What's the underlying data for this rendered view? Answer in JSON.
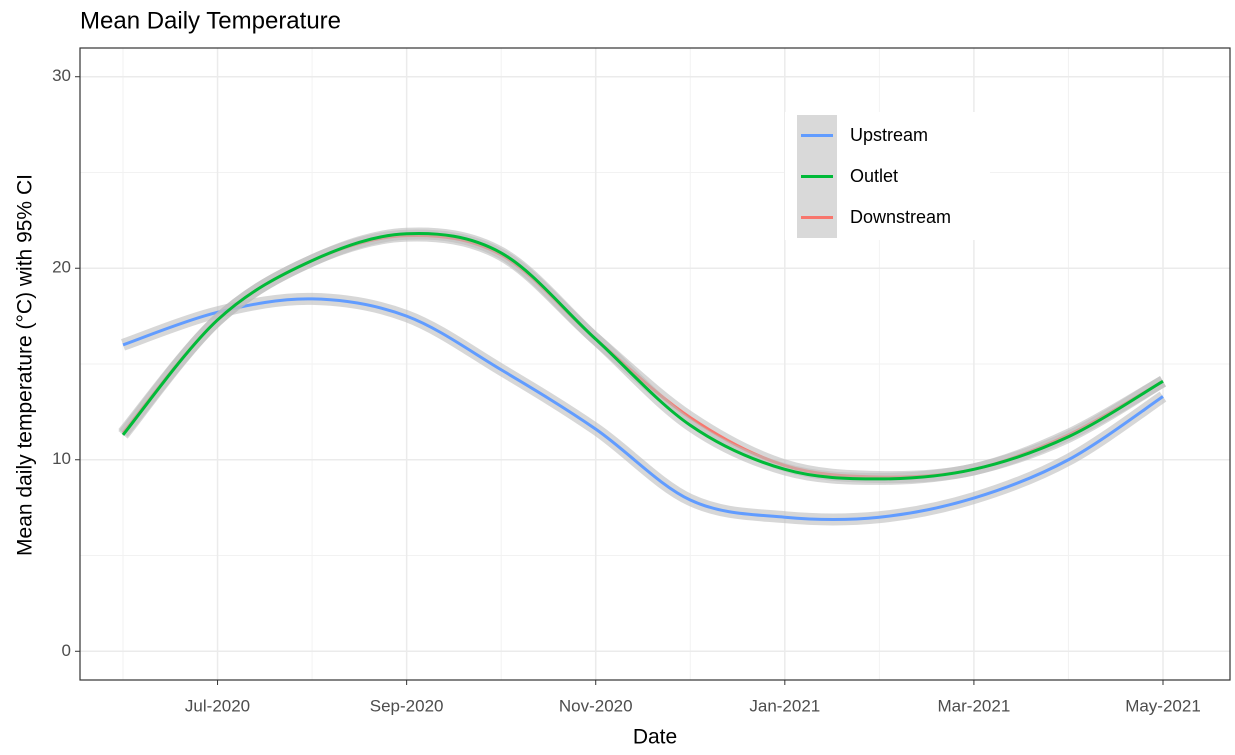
{
  "chart_data": {
    "type": "line",
    "title": "Mean Daily Temperature",
    "x_label": "Date",
    "y_label": "Mean daily temperature (°C) with 95% CI",
    "x": [
      "Jun-2020",
      "Jul-2020",
      "Aug-2020",
      "Sep-2020",
      "Oct-2020",
      "Nov-2020",
      "Dec-2020",
      "Jan-2021",
      "Feb-2021",
      "Mar-2021",
      "Apr-2021",
      "May-2021"
    ],
    "xticks": [
      "Jul-2020",
      "Sep-2020",
      "Nov-2020",
      "Jan-2021",
      "Mar-2021",
      "May-2021"
    ],
    "ylim": [
      -1.5,
      31.5
    ],
    "yticks": [
      0,
      10,
      20,
      30
    ],
    "grid": true,
    "legend": "top-right",
    "series": [
      {
        "name": "Upstream",
        "color": "#619cff",
        "values": [
          16.0,
          17.7,
          18.4,
          17.5,
          14.7,
          11.6,
          7.9,
          7.0,
          7.0,
          8.0,
          10.0,
          13.3
        ]
      },
      {
        "name": "Outlet",
        "color": "#00ba38",
        "values": [
          11.3,
          17.3,
          20.4,
          21.8,
          20.8,
          16.3,
          11.8,
          9.5,
          9.0,
          9.5,
          11.2,
          14.1
        ]
      },
      {
        "name": "Downstream",
        "color": "#f8766d",
        "values": [
          11.4,
          17.3,
          20.4,
          21.7,
          20.7,
          16.3,
          12.2,
          9.7,
          9.1,
          9.5,
          11.3,
          14.1
        ]
      }
    ]
  }
}
